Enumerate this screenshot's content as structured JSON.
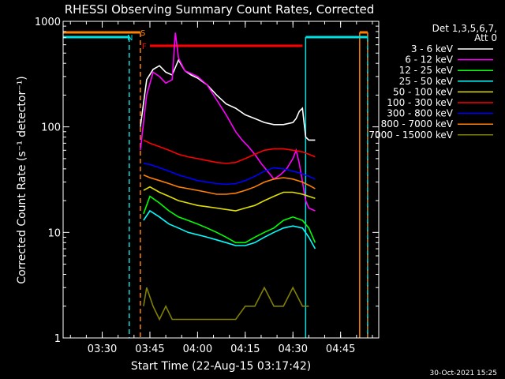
{
  "chart_data": {
    "type": "line",
    "title": "RHESSI Observing Summary Count Rates, Corrected",
    "xlabel": "Start Time (22-Aug-15 03:17:42)",
    "ylabel": "Corrected Count Rate (s⁻¹ detector⁻¹)",
    "y_scale": "log",
    "ylim": [
      1,
      1000
    ],
    "xlim": [
      "03:17:42",
      "04:57:00"
    ],
    "x_ticks": [
      "03:30",
      "03:45",
      "04:00",
      "04:15",
      "04:30",
      "04:45"
    ],
    "y_ticks": [
      "1",
      "10",
      "100",
      "1000"
    ],
    "legend_header": [
      "Det 1,3,5,6,7,",
      "Att 0"
    ],
    "legend_position": "top-right",
    "footer_date": "30-Oct-2021 15:25",
    "flags": [
      {
        "label": "S",
        "color": "#ff8000",
        "intervals": [
          [
            "03:17:42",
            "03:42:00"
          ],
          [
            "04:51:00",
            "04:53:30"
          ]
        ]
      },
      {
        "label": "N",
        "color": "#00e0e0",
        "intervals": [
          [
            "03:17:42",
            "03:38:30"
          ],
          [
            "04:34:00",
            "04:53:30"
          ]
        ]
      },
      {
        "label": "F",
        "color": "#ff0000",
        "intervals": [
          [
            "03:45:00",
            "04:33:00"
          ]
        ]
      }
    ],
    "series": [
      {
        "name": "3 - 6 keV",
        "color": "#ffffff",
        "x": [
          "03:42",
          "03:44",
          "03:46",
          "03:48",
          "03:50",
          "03:52",
          "03:54",
          "03:56",
          "03:58",
          "04:00",
          "04:03",
          "04:06",
          "04:09",
          "04:12",
          "04:15",
          "04:18",
          "04:21",
          "04:24",
          "04:27",
          "04:30",
          "04:31",
          "04:32",
          "04:33",
          "04:34",
          "04:35",
          "04:37"
        ],
        "values": [
          100,
          280,
          350,
          380,
          330,
          310,
          430,
          340,
          310,
          290,
          250,
          200,
          165,
          150,
          130,
          120,
          110,
          105,
          105,
          110,
          120,
          140,
          150,
          80,
          75,
          75
        ]
      },
      {
        "name": "6 - 12 keV",
        "color": "#ff00ff",
        "x": [
          "03:42",
          "03:44",
          "03:46",
          "03:48",
          "03:50",
          "03:52",
          "03:53",
          "03:54",
          "03:56",
          "03:58",
          "04:00",
          "04:03",
          "04:06",
          "04:09",
          "04:12",
          "04:14",
          "04:16",
          "04:18",
          "04:20",
          "04:22",
          "04:24",
          "04:26",
          "04:28",
          "04:30",
          "04:31",
          "04:32",
          "04:34",
          "04:35",
          "04:37"
        ],
        "values": [
          60,
          200,
          330,
          300,
          260,
          280,
          780,
          450,
          340,
          320,
          300,
          250,
          180,
          130,
          90,
          75,
          65,
          55,
          45,
          38,
          32,
          35,
          40,
          50,
          60,
          45,
          20,
          17,
          16
        ]
      },
      {
        "name": "12 - 25 keV",
        "color": "#00ff00",
        "x": [
          "03:43",
          "03:45",
          "03:48",
          "03:51",
          "03:54",
          "03:57",
          "04:00",
          "04:03",
          "04:06",
          "04:09",
          "04:12",
          "04:15",
          "04:18",
          "04:21",
          "04:24",
          "04:27",
          "04:30",
          "04:33",
          "04:35",
          "04:37"
        ],
        "values": [
          15,
          22,
          19,
          16,
          14,
          13,
          12,
          11,
          10,
          9,
          8,
          8,
          9,
          10,
          11,
          13,
          14,
          13,
          11,
          8
        ]
      },
      {
        "name": "25 - 50 keV",
        "color": "#00ffff",
        "x": [
          "03:43",
          "03:45",
          "03:48",
          "03:51",
          "03:54",
          "03:57",
          "04:00",
          "04:03",
          "04:06",
          "04:09",
          "04:12",
          "04:15",
          "04:18",
          "04:21",
          "04:24",
          "04:27",
          "04:30",
          "04:33",
          "04:35",
          "04:37"
        ],
        "values": [
          13,
          16,
          14,
          12,
          11,
          10,
          9.5,
          9,
          8.5,
          8,
          7.5,
          7.5,
          8,
          9,
          10,
          11,
          11.5,
          11,
          9,
          7
        ]
      },
      {
        "name": "50 - 100 keV",
        "color": "#e0e000",
        "x": [
          "03:43",
          "03:45",
          "03:48",
          "03:51",
          "03:54",
          "03:57",
          "04:00",
          "04:03",
          "04:06",
          "04:09",
          "04:12",
          "04:15",
          "04:18",
          "04:21",
          "04:24",
          "04:27",
          "04:30",
          "04:33",
          "04:35",
          "04:37"
        ],
        "values": [
          25,
          27,
          24,
          22,
          20,
          19,
          18,
          17.5,
          17,
          16.5,
          16,
          17,
          18,
          20,
          22,
          24,
          24,
          23,
          22,
          21
        ]
      },
      {
        "name": "100 - 300 keV",
        "color": "#ff0000",
        "x": [
          "03:43",
          "03:45",
          "03:48",
          "03:51",
          "03:54",
          "03:57",
          "04:00",
          "04:03",
          "04:06",
          "04:09",
          "04:12",
          "04:15",
          "04:18",
          "04:21",
          "04:24",
          "04:27",
          "04:30",
          "04:33",
          "04:35",
          "04:37"
        ],
        "values": [
          75,
          70,
          65,
          60,
          55,
          52,
          50,
          48,
          46,
          45,
          46,
          50,
          55,
          60,
          62,
          62,
          60,
          58,
          55,
          52
        ]
      },
      {
        "name": "300 - 800 keV",
        "color": "#0000ff",
        "x": [
          "03:43",
          "03:45",
          "03:48",
          "03:51",
          "03:54",
          "03:57",
          "04:00",
          "04:03",
          "04:06",
          "04:09",
          "04:12",
          "04:15",
          "04:18",
          "04:21",
          "04:24",
          "04:27",
          "04:30",
          "04:33",
          "04:35",
          "04:37"
        ],
        "values": [
          45,
          44,
          41,
          38,
          35,
          33,
          31,
          30,
          29,
          28.5,
          29,
          31,
          34,
          38,
          41,
          40,
          38,
          36,
          34,
          32
        ]
      },
      {
        "name": "800 - 7000 keV",
        "color": "#ff8000",
        "x": [
          "03:43",
          "03:45",
          "03:48",
          "03:51",
          "03:54",
          "03:57",
          "04:00",
          "04:03",
          "04:06",
          "04:09",
          "04:12",
          "04:15",
          "04:18",
          "04:21",
          "04:24",
          "04:27",
          "04:30",
          "04:33",
          "04:35",
          "04:37"
        ],
        "values": [
          35,
          33,
          31,
          29,
          27,
          26,
          25,
          24,
          23,
          23,
          23.5,
          25,
          27,
          30,
          32,
          33,
          32,
          30,
          28,
          26
        ]
      },
      {
        "name": "7000 - 15000 keV",
        "color": "#808000",
        "x": [
          "03:43",
          "03:44",
          "03:46",
          "03:48",
          "03:50",
          "03:52",
          "04:03",
          "04:06",
          "04:09",
          "04:12",
          "04:15",
          "04:18",
          "04:21",
          "04:24",
          "04:27",
          "04:30",
          "04:33",
          "04:35"
        ],
        "values": [
          2,
          3,
          2,
          1.5,
          2,
          1.5,
          1.5,
          1.5,
          1.5,
          1.5,
          2,
          2,
          3,
          2,
          2,
          3,
          2,
          2
        ]
      }
    ]
  }
}
